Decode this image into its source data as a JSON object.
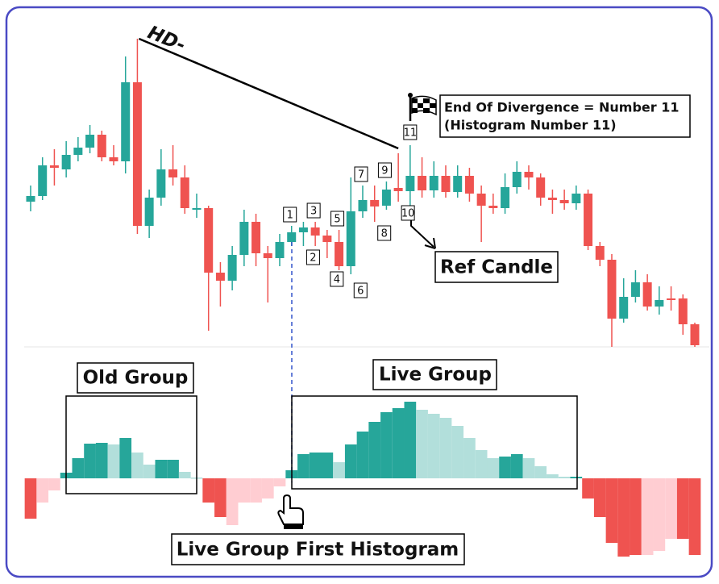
{
  "chart_data": {
    "type": "candlestick",
    "ylim": [
      0,
      400
    ],
    "up_color": "#26a69a",
    "down_color": "#ef5350",
    "candles": {
      "open": [
        180,
        187,
        225,
        220,
        238,
        247,
        263,
        235,
        230,
        328,
        150,
        185,
        220,
        210,
        170,
        172,
        92,
        82,
        114,
        155,
        116,
        110,
        130,
        142,
        148,
        138,
        130,
        100,
        168,
        182,
        175,
        197,
        193,
        212,
        194,
        212,
        192,
        212,
        190,
        175,
        172,
        198,
        217,
        210,
        185,
        182,
        178,
        190,
        125,
        108,
        35,
        62,
        80,
        50,
        60,
        60,
        28
      ],
      "high": [
        200,
        235,
        245,
        255,
        260,
        275,
        268,
        250,
        360,
        382,
        195,
        245,
        250,
        225,
        190,
        175,
        105,
        125,
        170,
        165,
        125,
        140,
        150,
        155,
        155,
        145,
        145,
        210,
        200,
        200,
        205,
        240,
        250,
        235,
        230,
        225,
        225,
        222,
        200,
        190,
        215,
        230,
        225,
        215,
        195,
        195,
        200,
        195,
        130,
        115,
        85,
        95,
        90,
        75,
        75,
        65,
        30
      ],
      "low": [
        168,
        182,
        200,
        210,
        230,
        240,
        230,
        225,
        215,
        140,
        135,
        175,
        200,
        165,
        160,
        20,
        50,
        70,
        100,
        100,
        55,
        100,
        125,
        125,
        125,
        110,
        95,
        90,
        160,
        155,
        170,
        180,
        160,
        185,
        185,
        185,
        185,
        180,
        130,
        165,
        165,
        190,
        195,
        175,
        165,
        170,
        170,
        120,
        100,
        0,
        30,
        55,
        45,
        40,
        45,
        15,
        0
      ],
      "close": [
        187,
        225,
        222,
        238,
        247,
        263,
        235,
        230,
        328,
        150,
        185,
        220,
        210,
        172,
        172,
        92,
        82,
        114,
        155,
        116,
        110,
        130,
        142,
        148,
        138,
        130,
        100,
        168,
        182,
        174,
        195,
        193,
        212,
        194,
        212,
        192,
        212,
        190,
        175,
        172,
        198,
        217,
        210,
        185,
        182,
        178,
        190,
        125,
        108,
        35,
        62,
        80,
        50,
        58,
        58,
        28,
        2
      ]
    },
    "histogram": {
      "ylim": [
        -100,
        100
      ],
      "values": [
        -50,
        -30,
        -15,
        7,
        25,
        43,
        44,
        42,
        50,
        32,
        17,
        23,
        23,
        8,
        1,
        -30,
        -48,
        -58,
        -30,
        -30,
        -25,
        -10,
        10,
        30,
        32,
        32,
        20,
        42,
        58,
        70,
        82,
        87,
        95,
        85,
        80,
        75,
        65,
        50,
        35,
        25,
        27,
        30,
        25,
        15,
        5,
        2,
        2,
        -25,
        -48,
        -80,
        -97,
        -95,
        -95,
        -90,
        -75,
        -75,
        -95
      ],
      "colors": [
        "#ef5350",
        "#ffcdd2",
        "#ffcdd2",
        "#26a69a",
        "#26a69a",
        "#26a69a",
        "#26a69a",
        "#b2dfdb",
        "#26a69a",
        "#b2dfdb",
        "#b2dfdb",
        "#26a69a",
        "#26a69a",
        "#b2dfdb",
        "#b2dfdb",
        "#ef5350",
        "#ef5350",
        "#ffcdd2",
        "#ffcdd2",
        "#ffcdd2",
        "#ffcdd2",
        "#ffcdd2",
        "#26a69a",
        "#26a69a",
        "#26a69a",
        "#26a69a",
        "#b2dfdb",
        "#26a69a",
        "#26a69a",
        "#26a69a",
        "#26a69a",
        "#26a69a",
        "#26a69a",
        "#b2dfdb",
        "#b2dfdb",
        "#b2dfdb",
        "#b2dfdb",
        "#b2dfdb",
        "#b2dfdb",
        "#b2dfdb",
        "#26a69a",
        "#26a69a",
        "#b2dfdb",
        "#b2dfdb",
        "#b2dfdb",
        "#b2dfdb",
        "#26a69a",
        "#ef5350",
        "#ef5350",
        "#ef5350",
        "#ef5350",
        "#ef5350",
        "#ffcdd2",
        "#ffcdd2",
        "#ffcdd2",
        "#ef5350",
        "#ef5350"
      ]
    },
    "candle_numbers": [
      "1",
      "2",
      "3",
      "4",
      "5",
      "6",
      "7",
      "8",
      "9",
      "10",
      "11"
    ],
    "annotations": {
      "divergence": "HD-",
      "end_line1": "End Of Divergence = Number 11",
      "end_line2": "(Histogram Number 11)",
      "ref_candle": "Ref Candle",
      "old_group": "Old Group",
      "live_group": "Live Group",
      "first_histogram": "Live Group First Histogram"
    }
  }
}
